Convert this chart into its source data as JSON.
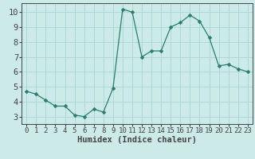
{
  "x": [
    0,
    1,
    2,
    3,
    4,
    5,
    6,
    7,
    8,
    9,
    10,
    11,
    12,
    13,
    14,
    15,
    16,
    17,
    18,
    19,
    20,
    21,
    22,
    23
  ],
  "y": [
    4.7,
    4.5,
    4.1,
    3.7,
    3.7,
    3.1,
    3.0,
    3.5,
    3.3,
    4.9,
    10.2,
    10.0,
    7.0,
    7.4,
    7.4,
    9.0,
    9.3,
    9.8,
    9.4,
    8.3,
    6.4,
    6.5,
    6.2,
    6.0
  ],
  "line_color": "#2a7d6e",
  "marker": "D",
  "marker_size": 2.5,
  "bg_color": "#cceae8",
  "grid_color": "#aad4d0",
  "axis_color": "#444444",
  "xlabel": "Humidex (Indice chaleur)",
  "xlim": [
    -0.5,
    23.5
  ],
  "ylim": [
    2.5,
    10.6
  ],
  "yticks": [
    3,
    4,
    5,
    6,
    7,
    8,
    9,
    10
  ],
  "xticks": [
    0,
    1,
    2,
    3,
    4,
    5,
    6,
    7,
    8,
    9,
    10,
    11,
    12,
    13,
    14,
    15,
    16,
    17,
    18,
    19,
    20,
    21,
    22,
    23
  ],
  "xlabel_fontsize": 7.5,
  "tick_fontsize": 6.5,
  "ytick_fontsize": 7.5
}
